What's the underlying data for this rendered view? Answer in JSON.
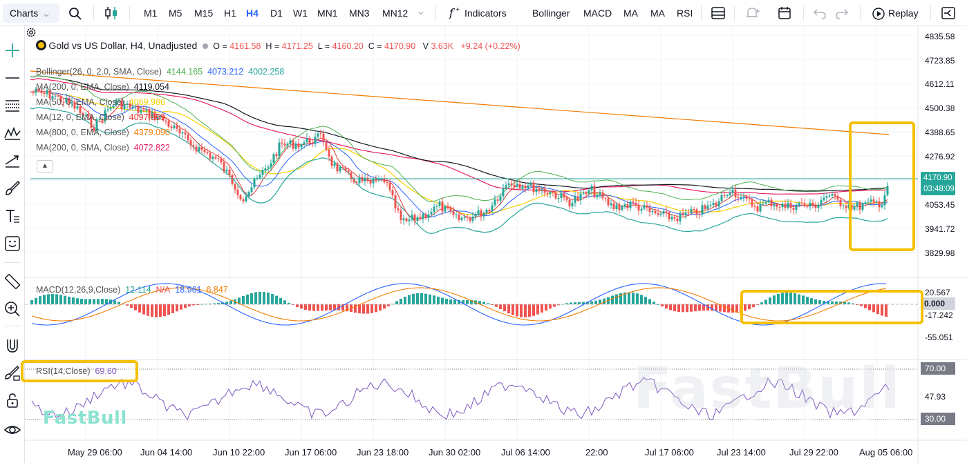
{
  "toolbar": {
    "charts_label": "Charts",
    "timeframes": [
      "M1",
      "M5",
      "M15",
      "H1",
      "H4",
      "D1",
      "W1",
      "MN1",
      "MN3",
      "MN12"
    ],
    "active_timeframe": "H4",
    "indicators_label": "Indicators",
    "quick_indicators": [
      "Bollinger",
      "MACD",
      "MA",
      "MA",
      "RSI"
    ],
    "replay_label": "Replay"
  },
  "symbol": {
    "title": "Gold vs US Dollar, H4, Unadjusted",
    "open_label": "O",
    "open": "4161.58",
    "high_label": "H",
    "high": "4171.25",
    "low_label": "L",
    "low": "4160.20",
    "close_label": "C",
    "close": "4170.90",
    "volume_label": "V",
    "volume": "3.63K",
    "change": "+9.24 (+0.22%)"
  },
  "indicators": [
    {
      "name": "Bollinger(26, 0, 2.0, SMA, Close)",
      "values": [
        "4144.165",
        "4073.212",
        "4002.258"
      ],
      "colors": [
        "#4caf50",
        "#2962ff",
        "#26a69a"
      ]
    },
    {
      "name": "MA(200, 0, EMA, Close)",
      "values": [
        "4119.054"
      ],
      "colors": [
        "#131722"
      ]
    },
    {
      "name": "MA(50, 0, EMA, Close)",
      "values": [
        "4069.986"
      ],
      "colors": [
        "#f5d000"
      ]
    },
    {
      "name": "MA(12, 0, EMA, Close)",
      "values": [
        "4097.869"
      ],
      "colors": [
        "#e53935"
      ]
    },
    {
      "name": "MA(800, 0, EMA, Close)",
      "values": [
        "4379.090"
      ],
      "colors": [
        "#f57c00"
      ]
    },
    {
      "name": "MA(200, 0, SMA, Close)",
      "values": [
        "4072.822"
      ],
      "colors": [
        "#e91e63"
      ]
    }
  ],
  "price_axis": [
    "4835.58",
    "4723.85",
    "4612.11",
    "4500.38",
    "4388.65",
    "4276.92",
    "4053.45",
    "3941.72",
    "3829.98"
  ],
  "last_price": {
    "price": "4170.90",
    "countdown": "03:48:09"
  },
  "macd": {
    "name": "MACD(12,26,9,Close)",
    "hist": "12.114",
    "macd_na": "N/A",
    "signal": "18.961",
    "value": "6.847",
    "axis": [
      "20.567",
      "0.000",
      "-17.242",
      "-55.051"
    ]
  },
  "rsi": {
    "name": "RSI(14,Close)",
    "value": "69.60",
    "axis": [
      "70.00",
      "47.93",
      "30.00"
    ]
  },
  "time_axis": [
    "May 29 06:00",
    "Jun 04 14:00",
    "Jun 10 22:00",
    "Jun 17 06:00",
    "Jun 23 18:00",
    "Jun 30 02:00",
    "Jul 06 14:00",
    "22:00",
    "Jul 17 06:00",
    "Jul 23 14:00",
    "Jul 29 22:00",
    "Aug 05 06:00"
  ],
  "branding": {
    "logo": "FastBull",
    "watermark": "FastBull"
  },
  "colors": {
    "up": "#26a69a",
    "down": "#ef5350",
    "accent": "#2962ff",
    "highlight": "#f5c000"
  }
}
